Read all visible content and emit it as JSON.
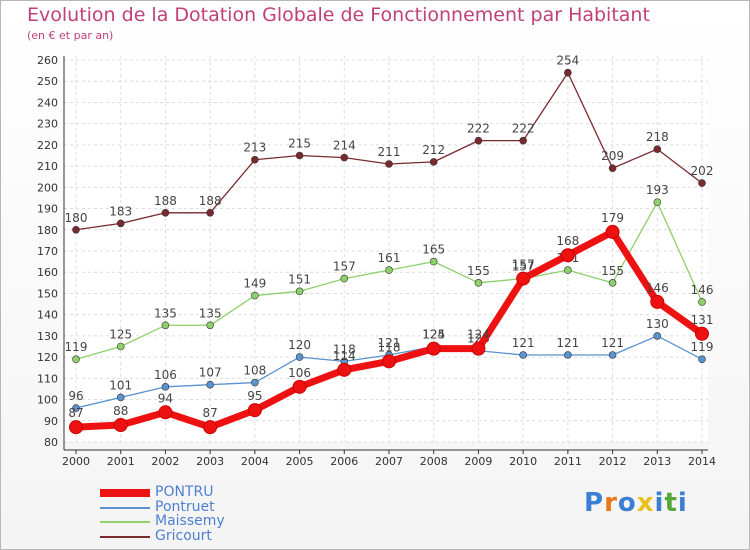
{
  "title": "Evolution de la Dotation Globale de Fonctionnement par Habitant",
  "subtitle": "(en € et par an)",
  "logo": {
    "letters": [
      "P",
      "r",
      "o",
      "x",
      "i",
      "t",
      "i"
    ],
    "colors": [
      "#3b7fd4",
      "#e8761a",
      "#3b7fd4",
      "#e8c21a",
      "#3b7fd4",
      "#57a83a",
      "#3b7fd4"
    ]
  },
  "chart_data": {
    "type": "line",
    "title": "Evolution de la Dotation Globale de Fonctionnement par Habitant",
    "ylabel": "(en € et par an)",
    "x": [
      "2000",
      "2001",
      "2002",
      "2003",
      "2004",
      "2005",
      "2006",
      "2007",
      "2008",
      "2009",
      "2010",
      "2011",
      "2012",
      "2013",
      "2014"
    ],
    "yticks": [
      80,
      90,
      100,
      110,
      120,
      130,
      140,
      150,
      160,
      170,
      180,
      190,
      200,
      210,
      220,
      230,
      240,
      250,
      260
    ],
    "ylim": [
      80,
      260
    ],
    "grid": true,
    "legend_position": "bottom-left",
    "series": [
      {
        "name": "Gricourt",
        "color": "#7a2a2f",
        "width": "thin",
        "values": [
          180,
          183,
          188,
          188,
          213,
          215,
          214,
          211,
          212,
          222,
          222,
          254,
          209,
          218,
          202
        ],
        "labels": [
          "180",
          "183",
          "188",
          "188",
          "213",
          "215",
          "214",
          "211",
          "212",
          "222",
          "222",
          "254",
          "209",
          "218",
          "202"
        ]
      },
      {
        "name": "Maissemy",
        "color": "#8ed06a",
        "width": "thin",
        "values": [
          119,
          125,
          135,
          135,
          149,
          151,
          157,
          161,
          165,
          155,
          157,
          161,
          155,
          193,
          146
        ],
        "labels": [
          "119",
          "125",
          "135",
          "135",
          "149",
          "151",
          "157",
          "161",
          "165",
          "155",
          "157",
          "161",
          "155",
          "193",
          "146"
        ]
      },
      {
        "name": "Pontruet",
        "color": "#5a93cf",
        "width": "thin",
        "values": [
          96,
          101,
          106,
          107,
          108,
          120,
          118,
          121,
          125,
          123,
          121,
          121,
          121,
          130,
          119
        ],
        "labels": [
          "96",
          "101",
          "106",
          "107",
          "108",
          "120",
          "118",
          "121",
          "125",
          "123",
          "121",
          "121",
          "121",
          "130",
          "119"
        ]
      },
      {
        "name": "PONTRU",
        "color": "#ee1111",
        "width": "thick",
        "values": [
          87,
          88,
          94,
          87,
          95,
          106,
          114,
          118,
          124,
          124,
          157,
          168,
          179,
          146,
          131
        ],
        "labels": [
          "87",
          "88",
          "94",
          "87",
          "95",
          "106",
          "114",
          "118",
          "124",
          "124",
          "157",
          "168",
          "179",
          "146",
          "131"
        ]
      }
    ],
    "legend": [
      "PONTRU",
      "Pontruet",
      "Maissemy",
      "Gricourt"
    ]
  }
}
